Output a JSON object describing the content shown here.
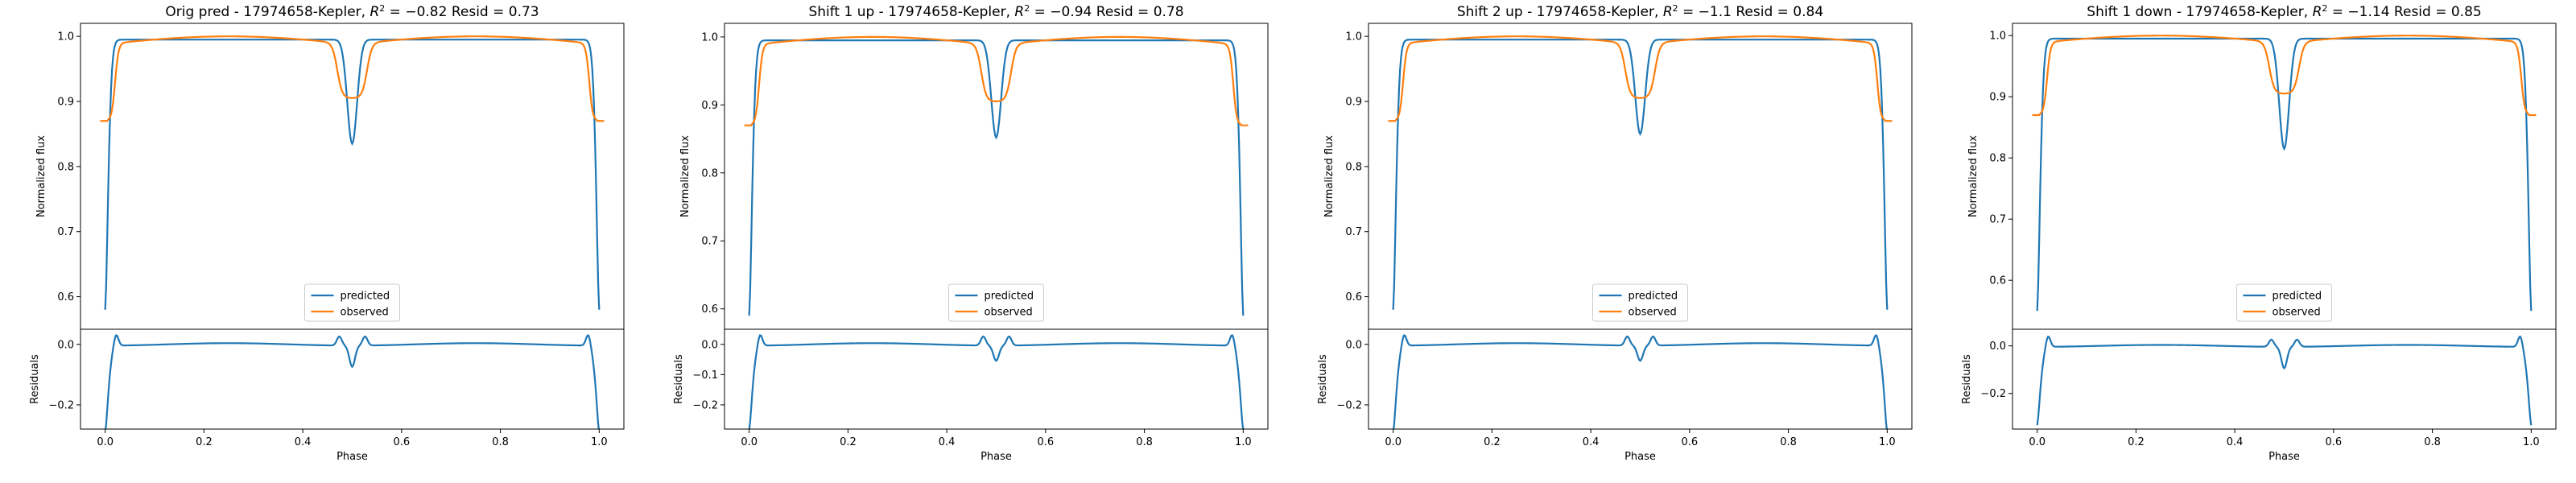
{
  "figure": {
    "panels": [
      {
        "title": "Orig pred - 17974658-Kepler, $R^2 = $-0.82 Resid = 0.73"
      },
      {
        "title": "Shift 1 up - 17974658-Kepler, $R^2 = $-0.94 Resid = 0.78"
      },
      {
        "title": "Shift 2 up - 17974658-Kepler, $R^2 = $-1.1 Resid = 0.84"
      },
      {
        "title": "Shift 1 down - 17974658-Kepler, $R^2 = $-1.14 Resid = 0.85"
      }
    ]
  },
  "chart_data": [
    {
      "type": "line",
      "title": "Orig pred - 17974658-Kepler, R² = -0.82 Resid = 0.73",
      "title_prefix": "Orig pred - 17974658-Kepler, ",
      "r2_value": "-0.82",
      "resid_text": " Resid = 0.73",
      "xlabel": "Phase",
      "ylabel": "Normalized flux",
      "resid_ylabel": "Residuals",
      "xlim": [
        -0.05,
        1.05
      ],
      "ylim": [
        0.55,
        1.02
      ],
      "resid_ylim": [
        -0.28,
        0.05
      ],
      "xticks": [
        0.0,
        0.2,
        0.4,
        0.6,
        0.8,
        1.0
      ],
      "yticks": [
        0.6,
        0.7,
        0.8,
        0.9,
        1.0
      ],
      "resid_yticks": [
        -0.2,
        0.0
      ],
      "legend_position": "lower center",
      "series": [
        {
          "name": "predicted",
          "color": "#1f77b4",
          "baseline": 0.995,
          "edge_min": 0.58,
          "eclipse_min": 0.835
        },
        {
          "name": "observed",
          "color": "#ff7f0e",
          "plateau": 0.988,
          "peak": 1.0,
          "edge": 0.87,
          "eclipse_min": 0.905
        }
      ],
      "residuals": {
        "color": "#1f77b4",
        "edge_peak": 0.04,
        "edge_min": -0.28,
        "center_bump": 0.03,
        "center_min": -0.07
      }
    },
    {
      "type": "line",
      "title": "Shift 1 up - 17974658-Kepler, R² = -0.94 Resid = 0.78",
      "title_prefix": "Shift 1 up - 17974658-Kepler, ",
      "r2_value": "-0.94",
      "resid_text": " Resid = 0.78",
      "xlabel": "Phase",
      "ylabel": "Normalized flux",
      "resid_ylabel": "Residuals",
      "xlim": [
        -0.05,
        1.05
      ],
      "ylim": [
        0.57,
        1.02
      ],
      "resid_ylim": [
        -0.28,
        0.05
      ],
      "xticks": [
        0.0,
        0.2,
        0.4,
        0.6,
        0.8,
        1.0
      ],
      "yticks": [
        0.6,
        0.7,
        0.8,
        0.9,
        1.0
      ],
      "resid_yticks": [
        -0.2,
        -0.1,
        0.0
      ],
      "legend_position": "lower center",
      "series": [
        {
          "name": "predicted",
          "color": "#1f77b4",
          "baseline": 0.995,
          "edge_min": 0.59,
          "eclipse_min": 0.852
        },
        {
          "name": "observed",
          "color": "#ff7f0e",
          "plateau": 0.988,
          "peak": 1.0,
          "edge": 0.87,
          "eclipse_min": 0.905
        }
      ],
      "residuals": {
        "color": "#1f77b4",
        "edge_peak": 0.04,
        "edge_min": -0.27,
        "center_bump": 0.03,
        "center_min": -0.05
      }
    },
    {
      "type": "line",
      "title": "Shift 2 up - 17974658-Kepler, R² = -1.1 Resid = 0.84",
      "title_prefix": "Shift 2 up - 17974658-Kepler, ",
      "r2_value": "-1.1",
      "resid_text": " Resid = 0.84",
      "xlabel": "Phase",
      "ylabel": "Normalized flux",
      "resid_ylabel": "Residuals",
      "xlim": [
        -0.05,
        1.05
      ],
      "ylim": [
        0.55,
        1.02
      ],
      "resid_ylim": [
        -0.28,
        0.05
      ],
      "xticks": [
        0.0,
        0.2,
        0.4,
        0.6,
        0.8,
        1.0
      ],
      "yticks": [
        0.6,
        0.7,
        0.8,
        0.9,
        1.0
      ],
      "resid_yticks": [
        -0.2,
        0.0
      ],
      "legend_position": "lower center",
      "series": [
        {
          "name": "predicted",
          "color": "#1f77b4",
          "baseline": 0.995,
          "edge_min": 0.58,
          "eclipse_min": 0.85
        },
        {
          "name": "observed",
          "color": "#ff7f0e",
          "plateau": 0.988,
          "peak": 1.0,
          "edge": 0.87,
          "eclipse_min": 0.905
        }
      ],
      "residuals": {
        "color": "#1f77b4",
        "edge_peak": 0.04,
        "edge_min": -0.28,
        "center_bump": 0.03,
        "center_min": -0.05
      }
    },
    {
      "type": "line",
      "title": "Shift 1 down - 17974658-Kepler, R² = -1.14 Resid = 0.85",
      "title_prefix": "Shift 1 down - 17974658-Kepler, ",
      "r2_value": "-1.14",
      "resid_text": " Resid = 0.85",
      "xlabel": "Phase",
      "ylabel": "Normalized flux",
      "resid_ylabel": "Residuals",
      "xlim": [
        -0.05,
        1.05
      ],
      "ylim": [
        0.52,
        1.02
      ],
      "resid_ylim": [
        -0.35,
        0.07
      ],
      "xticks": [
        0.0,
        0.2,
        0.4,
        0.6,
        0.8,
        1.0
      ],
      "yticks": [
        0.6,
        0.7,
        0.8,
        0.9,
        1.0
      ],
      "resid_yticks": [
        -0.2,
        0.0
      ],
      "legend_position": "lower center",
      "series": [
        {
          "name": "predicted",
          "color": "#1f77b4",
          "baseline": 0.995,
          "edge_min": 0.55,
          "eclipse_min": 0.815
        },
        {
          "name": "observed",
          "color": "#ff7f0e",
          "plateau": 0.988,
          "peak": 1.0,
          "edge": 0.87,
          "eclipse_min": 0.905
        }
      ],
      "residuals": {
        "color": "#1f77b4",
        "edge_peak": 0.05,
        "edge_min": -0.32,
        "center_bump": 0.03,
        "center_min": -0.09
      }
    }
  ]
}
